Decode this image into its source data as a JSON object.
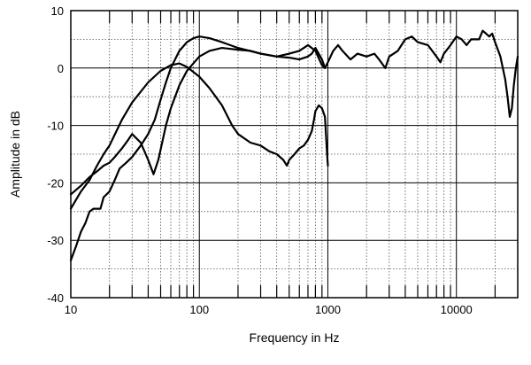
{
  "chart_data": {
    "type": "line",
    "title": "",
    "xlabel": "Frequency in Hz",
    "ylabel": "Amplitude in dB",
    "xscale": "log",
    "xlim": [
      10,
      30000
    ],
    "ylim": [
      -40,
      10
    ],
    "x_ticks": [
      10,
      100,
      1000,
      10000
    ],
    "x_tick_labels": [
      "10",
      "100",
      "1000",
      "10000"
    ],
    "y_ticks": [
      10,
      0,
      -10,
      -20,
      -30,
      -40
    ],
    "y_tick_labels": [
      "10",
      "0",
      "-10",
      "-20",
      "-30",
      "-40"
    ],
    "grid": "major solid, minor dotted",
    "legend": "none",
    "line_color": "#000000",
    "series": [
      {
        "points": [
          [
            10,
            -24.5
          ],
          [
            12,
            -21.5
          ],
          [
            14,
            -19.5
          ],
          [
            16,
            -17
          ],
          [
            18,
            -15
          ],
          [
            20,
            -13.5
          ],
          [
            25,
            -9
          ],
          [
            30,
            -6
          ],
          [
            40,
            -2.5
          ],
          [
            50,
            -0.5
          ],
          [
            60,
            0.5
          ],
          [
            70,
            0.8
          ],
          [
            80,
            0.2
          ],
          [
            100,
            -1.5
          ],
          [
            120,
            -3.5
          ],
          [
            150,
            -6.5
          ],
          [
            180,
            -10
          ],
          [
            200,
            -11.5
          ],
          [
            250,
            -13
          ],
          [
            300,
            -13.5
          ],
          [
            350,
            -14.5
          ],
          [
            400,
            -15
          ],
          [
            450,
            -16
          ],
          [
            480,
            -17
          ],
          [
            500,
            -16
          ],
          [
            550,
            -15
          ],
          [
            600,
            -14
          ],
          [
            650,
            -13.5
          ],
          [
            700,
            -12.5
          ],
          [
            750,
            -11
          ],
          [
            780,
            -9
          ],
          [
            800,
            -7.5
          ],
          [
            850,
            -6.5
          ],
          [
            900,
            -7
          ],
          [
            950,
            -8.5
          ],
          [
            980,
            -14
          ],
          [
            1000,
            -17
          ]
        ]
      },
      {
        "points": [
          [
            10,
            -22
          ],
          [
            12,
            -20.5
          ],
          [
            14,
            -19
          ],
          [
            16,
            -18
          ],
          [
            18,
            -17
          ],
          [
            20,
            -16.5
          ],
          [
            22,
            -15.5
          ],
          [
            25,
            -14
          ],
          [
            28,
            -12.5
          ],
          [
            30,
            -11.5
          ],
          [
            35,
            -13
          ],
          [
            40,
            -16
          ],
          [
            44,
            -18.5
          ],
          [
            48,
            -16
          ],
          [
            55,
            -10
          ],
          [
            60,
            -7
          ],
          [
            70,
            -3
          ],
          [
            80,
            -0.5
          ],
          [
            100,
            2
          ],
          [
            120,
            3
          ],
          [
            150,
            3.5
          ],
          [
            200,
            3.2
          ],
          [
            250,
            3
          ],
          [
            300,
            2.5
          ],
          [
            400,
            2
          ],
          [
            500,
            1.8
          ],
          [
            600,
            1.5
          ],
          [
            700,
            2
          ],
          [
            750,
            2.5
          ],
          [
            800,
            3.5
          ],
          [
            900,
            1.5
          ],
          [
            950,
            0
          ]
        ]
      },
      {
        "points": [
          [
            10,
            -33.5
          ],
          [
            11,
            -31
          ],
          [
            12,
            -28.5
          ],
          [
            13,
            -27
          ],
          [
            14,
            -25
          ],
          [
            15,
            -24.5
          ],
          [
            17,
            -24.5
          ],
          [
            18,
            -22.5
          ],
          [
            20,
            -21.5
          ],
          [
            22,
            -19.5
          ],
          [
            24,
            -17.5
          ],
          [
            27,
            -16.5
          ],
          [
            30,
            -15.5
          ],
          [
            35,
            -13.5
          ],
          [
            40,
            -11.5
          ],
          [
            45,
            -9
          ],
          [
            50,
            -5.5
          ],
          [
            55,
            -2.5
          ],
          [
            60,
            0
          ],
          [
            70,
            3
          ],
          [
            80,
            4.5
          ],
          [
            90,
            5.2
          ],
          [
            100,
            5.5
          ],
          [
            120,
            5.2
          ],
          [
            150,
            4.5
          ],
          [
            200,
            3.5
          ],
          [
            300,
            2.5
          ],
          [
            400,
            2
          ],
          [
            500,
            2.5
          ],
          [
            600,
            3
          ],
          [
            700,
            4
          ],
          [
            800,
            3
          ],
          [
            900,
            0.5
          ],
          [
            950,
            0
          ],
          [
            1000,
            1
          ],
          [
            1100,
            3
          ],
          [
            1200,
            4
          ],
          [
            1300,
            3
          ],
          [
            1500,
            1.5
          ],
          [
            1700,
            2.5
          ],
          [
            2000,
            2
          ],
          [
            2300,
            2.5
          ],
          [
            2500,
            1.5
          ],
          [
            2800,
            0
          ],
          [
            3000,
            2
          ],
          [
            3500,
            3
          ],
          [
            4000,
            5
          ],
          [
            4500,
            5.5
          ],
          [
            5000,
            4.5
          ],
          [
            6000,
            4
          ],
          [
            7000,
            2
          ],
          [
            7500,
            1
          ],
          [
            8000,
            2.5
          ],
          [
            9000,
            4
          ],
          [
            10000,
            5.5
          ],
          [
            11000,
            5
          ],
          [
            12000,
            4
          ],
          [
            13000,
            5
          ],
          [
            15000,
            5
          ],
          [
            16000,
            6.5
          ],
          [
            17000,
            6
          ],
          [
            18000,
            5.5
          ],
          [
            19000,
            6
          ],
          [
            20000,
            4.5
          ],
          [
            22000,
            2
          ],
          [
            24000,
            -2
          ],
          [
            25000,
            -5
          ],
          [
            26000,
            -8.5
          ],
          [
            27000,
            -7
          ],
          [
            28000,
            -3
          ],
          [
            29000,
            0
          ],
          [
            30000,
            2
          ]
        ]
      }
    ]
  }
}
